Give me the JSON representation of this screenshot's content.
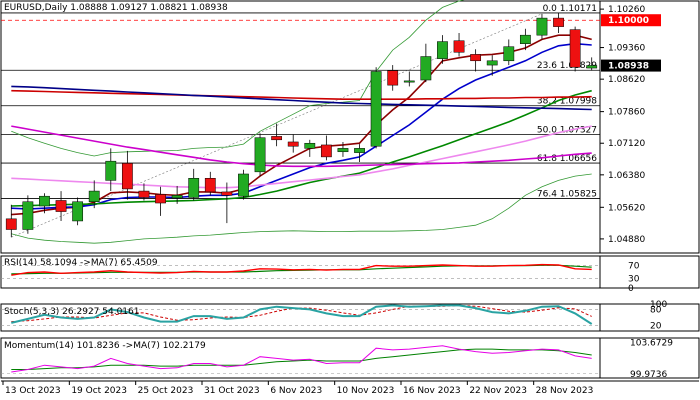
{
  "chart_data": {
    "type": "candlestick",
    "symbol": "EURUSD",
    "timeframe": "Daily",
    "ohlc_header": "EURUSD,Daily  1.08888 1.09127 1.08821 1.08938",
    "price_axis": {
      "ylim": [
        1.0455,
        1.1045
      ],
      "ticks": [
        "1.10260",
        "1.09360",
        "1.08620",
        "1.07860",
        "1.07120",
        "1.06380",
        "1.05620",
        "1.04880"
      ],
      "tick_values": [
        1.1026,
        1.0936,
        1.0862,
        1.0786,
        1.0712,
        1.0638,
        1.0562,
        1.0488
      ]
    },
    "x_axis": {
      "labels": [
        "13 Oct 2023",
        "19 Oct 2023",
        "25 Oct 2023",
        "31 Oct 2023",
        "6 Nov 2023",
        "10 Nov 2023",
        "16 Nov 2023",
        "22 Nov 2023",
        "28 Nov 2023"
      ],
      "label_bar_index": [
        0,
        4,
        8,
        12,
        16,
        20,
        24,
        28,
        32
      ]
    },
    "candles": [
      {
        "o": 1.0535,
        "h": 1.0568,
        "l": 1.0492,
        "c": 1.051
      },
      {
        "o": 1.051,
        "h": 1.059,
        "l": 1.05,
        "c": 1.0575
      },
      {
        "o": 1.0565,
        "h": 1.0595,
        "l": 1.0548,
        "c": 1.0588
      },
      {
        "o": 1.0578,
        "h": 1.06,
        "l": 1.053,
        "c": 1.0552
      },
      {
        "o": 1.053,
        "h": 1.0585,
        "l": 1.052,
        "c": 1.0575
      },
      {
        "o": 1.0575,
        "h": 1.0625,
        "l": 1.056,
        "c": 1.06
      },
      {
        "o": 1.0625,
        "h": 1.07,
        "l": 1.06,
        "c": 1.067
      },
      {
        "o": 1.0665,
        "h": 1.0694,
        "l": 1.058,
        "c": 1.0605
      },
      {
        "o": 1.06,
        "h": 1.0618,
        "l": 1.0578,
        "c": 1.0585
      },
      {
        "o": 1.0592,
        "h": 1.061,
        "l": 1.0542,
        "c": 1.0572
      },
      {
        "o": 1.0584,
        "h": 1.0612,
        "l": 1.057,
        "c": 1.059
      },
      {
        "o": 1.0585,
        "h": 1.0652,
        "l": 1.0578,
        "c": 1.063
      },
      {
        "o": 1.063,
        "h": 1.0645,
        "l": 1.059,
        "c": 1.0598
      },
      {
        "o": 1.0598,
        "h": 1.062,
        "l": 1.0525,
        "c": 1.059
      },
      {
        "o": 1.0588,
        "h": 1.065,
        "l": 1.058,
        "c": 1.064
      },
      {
        "o": 1.0645,
        "h": 1.0735,
        "l": 1.0635,
        "c": 1.0725
      },
      {
        "o": 1.0728,
        "h": 1.0758,
        "l": 1.0705,
        "c": 1.072
      },
      {
        "o": 1.0715,
        "h": 1.0732,
        "l": 1.069,
        "c": 1.0705
      },
      {
        "o": 1.07,
        "h": 1.072,
        "l": 1.068,
        "c": 1.0712
      },
      {
        "o": 1.0708,
        "h": 1.073,
        "l": 1.0672,
        "c": 1.068
      },
      {
        "o": 1.0692,
        "h": 1.0715,
        "l": 1.068,
        "c": 1.07
      },
      {
        "o": 1.069,
        "h": 1.071,
        "l": 1.0668,
        "c": 1.07
      },
      {
        "o": 1.0705,
        "h": 1.089,
        "l": 1.07,
        "c": 1.088
      },
      {
        "o": 1.0882,
        "h": 1.0895,
        "l": 1.0835,
        "c": 1.0848
      },
      {
        "o": 1.0855,
        "h": 1.088,
        "l": 1.0845,
        "c": 1.0858
      },
      {
        "o": 1.086,
        "h": 1.0945,
        "l": 1.0855,
        "c": 1.0915
      },
      {
        "o": 1.091,
        "h": 1.0965,
        "l": 1.0898,
        "c": 1.095
      },
      {
        "o": 1.0952,
        "h": 1.097,
        "l": 1.0915,
        "c": 1.0925
      },
      {
        "o": 1.092,
        "h": 1.0932,
        "l": 1.088,
        "c": 1.0905
      },
      {
        "o": 1.0895,
        "h": 1.0918,
        "l": 1.087,
        "c": 1.0905
      },
      {
        "o": 1.0905,
        "h": 1.0955,
        "l": 1.0895,
        "c": 1.0938
      },
      {
        "o": 1.0945,
        "h": 1.098,
        "l": 1.093,
        "c": 1.0965
      },
      {
        "o": 1.0965,
        "h": 1.1015,
        "l": 1.0955,
        "c": 1.1005
      },
      {
        "o": 1.1005,
        "h": 1.1018,
        "l": 1.097,
        "c": 1.0985
      },
      {
        "o": 1.0978,
        "h": 1.0985,
        "l": 1.088,
        "c": 1.089
      },
      {
        "o": 1.0888,
        "h": 1.0913,
        "l": 1.0882,
        "c": 1.0894
      }
    ],
    "candle_colors": {
      "up": "#22aa22",
      "down": "#ee1111"
    },
    "moving_averages": [
      {
        "color": "#8b0000",
        "values": [
          1.0545,
          1.0548,
          1.0555,
          1.056,
          1.0562,
          1.0574,
          1.0596,
          1.0598,
          1.0596,
          1.0592,
          1.059,
          1.0598,
          1.0598,
          1.0595,
          1.0605,
          1.0635,
          1.066,
          1.068,
          1.07,
          1.0705,
          1.0708,
          1.0712,
          1.0755,
          1.079,
          1.082,
          1.086,
          1.0905,
          1.0912,
          1.0918,
          1.092,
          1.0925,
          1.0935,
          1.0955,
          1.0965,
          1.0965,
          1.0955
        ]
      },
      {
        "color": "#0000cc",
        "values": [
          1.056,
          1.0558,
          1.056,
          1.0562,
          1.0563,
          1.0568,
          1.058,
          1.0585,
          1.0586,
          1.0586,
          1.0585,
          1.0588,
          1.059,
          1.059,
          1.0595,
          1.061,
          1.0625,
          1.064,
          1.0655,
          1.0665,
          1.0672,
          1.068,
          1.0705,
          1.073,
          1.0755,
          1.0785,
          1.0815,
          1.084,
          1.086,
          1.0875,
          1.089,
          1.0905,
          1.0925,
          1.094,
          1.0945,
          1.0942
        ]
      },
      {
        "color": "#008800",
        "values": [
          1.0565,
          1.0566,
          1.0567,
          1.0568,
          1.0569,
          1.057,
          1.0572,
          1.0574,
          1.0575,
          1.0576,
          1.0577,
          1.0578,
          1.058,
          1.0582,
          1.0585,
          1.0592,
          1.06,
          1.061,
          1.062,
          1.0628,
          1.0635,
          1.0642,
          1.0655,
          1.0668,
          1.068,
          1.0693,
          1.0706,
          1.072,
          1.0734,
          1.0748,
          1.0762,
          1.0778,
          1.0795,
          1.0812,
          1.0825,
          1.0835
        ]
      },
      {
        "color": "#ee88ee",
        "values": [
          1.063,
          1.0628,
          1.0626,
          1.0624,
          1.0622,
          1.062,
          1.0618,
          1.0616,
          1.0614,
          1.0612,
          1.061,
          1.0609,
          1.0608,
          1.0608,
          1.061,
          1.0614,
          1.0618,
          1.0622,
          1.0626,
          1.063,
          1.0634,
          1.0638,
          1.0645,
          1.0652,
          1.066,
          1.0668,
          1.0676,
          1.0684,
          1.0692,
          1.07,
          1.0708,
          1.0717,
          1.0727,
          1.0737,
          1.0745,
          1.0752
        ]
      },
      {
        "color": "#cc00cc",
        "values": [
          1.0752,
          1.0745,
          1.0738,
          1.0731,
          1.0724,
          1.0717,
          1.071,
          1.0703,
          1.0697,
          1.0691,
          1.0685,
          1.0679,
          1.0673,
          1.0668,
          1.0664,
          1.0661,
          1.0659,
          1.0658,
          1.0658,
          1.0658,
          1.0659,
          1.066,
          1.0661,
          1.0662,
          1.0663,
          1.0664,
          1.0665,
          1.0666,
          1.0668,
          1.067,
          1.0672,
          1.0675,
          1.0678,
          1.0682,
          1.0686,
          1.0689
        ]
      },
      {
        "color": "#cc0000",
        "values": [
          1.0835,
          1.0834,
          1.0833,
          1.0832,
          1.0831,
          1.083,
          1.0829,
          1.0828,
          1.0827,
          1.0826,
          1.0825,
          1.0824,
          1.0823,
          1.0822,
          1.0821,
          1.082,
          1.0819,
          1.0818,
          1.0817,
          1.0816,
          1.0815,
          1.0815,
          1.0815,
          1.0815,
          1.0815,
          1.0816,
          1.0816,
          1.0817,
          1.0817,
          1.0818,
          1.0818,
          1.0819,
          1.0819,
          1.082,
          1.082,
          1.0821
        ]
      },
      {
        "color": "#000088",
        "values": [
          1.0845,
          1.0844,
          1.0842,
          1.084,
          1.0838,
          1.0836,
          1.0834,
          1.0832,
          1.083,
          1.0828,
          1.0826,
          1.0824,
          1.0822,
          1.082,
          1.0818,
          1.0816,
          1.0814,
          1.0812,
          1.081,
          1.0808,
          1.0806,
          1.0805,
          1.0804,
          1.0803,
          1.0802,
          1.0801,
          1.08,
          1.0799,
          1.0798,
          1.0797,
          1.0796,
          1.0795,
          1.0794,
          1.0793,
          1.0792,
          1.0791
        ]
      }
    ],
    "bollinger_bands": {
      "color": "#339933",
      "upper": [
        1.074,
        1.0725,
        1.0712,
        1.07,
        1.069,
        1.0682,
        1.069,
        1.0692,
        1.0693,
        1.0694,
        1.0695,
        1.07,
        1.0702,
        1.0703,
        1.071,
        1.074,
        1.076,
        1.078,
        1.08,
        1.0805,
        1.0808,
        1.0812,
        1.088,
        1.093,
        1.096,
        1.1,
        1.103,
        1.1045,
        1.1055,
        1.106,
        1.1065,
        1.1068,
        1.107,
        1.107,
        1.107,
        1.107
      ],
      "lower": [
        1.05,
        1.049,
        1.0485,
        1.0482,
        1.048,
        1.0478,
        1.048,
        1.0484,
        1.0488,
        1.049,
        1.0492,
        1.0495,
        1.0497,
        1.05,
        1.0503,
        1.0505,
        1.0506,
        1.0507,
        1.0506,
        1.0505,
        1.0505,
        1.0506,
        1.0506,
        1.0506,
        1.0507,
        1.0508,
        1.051,
        1.0515,
        1.052,
        1.0535,
        1.056,
        1.059,
        1.061,
        1.0625,
        1.0635,
        1.064
      ]
    },
    "fibonacci": [
      {
        "label": "0.0 1.10171",
        "value": 1.10171
      },
      {
        "label": "23.6 1.08829",
        "value": 1.08829
      },
      {
        "label": "38.2 1.07998",
        "value": 1.07998
      },
      {
        "label": "50.0 1.07327",
        "value": 1.07327
      },
      {
        "label": "61.8 1.06656",
        "value": 1.06656
      },
      {
        "label": "76.4 1.05825",
        "value": 1.05825
      }
    ],
    "red_level": {
      "label": "1.10000",
      "value": 1.1,
      "color": "#ff0000"
    },
    "current_price": {
      "label": "1.08938",
      "value": 1.08938
    },
    "rsi": {
      "title": "RSI(14) 58.1094  ->MA(7) 65.4509",
      "ticks": [
        "70",
        "30",
        "0"
      ],
      "tick_values": [
        70,
        30,
        0
      ],
      "ylim": [
        0,
        100
      ],
      "rsi_values": [
        40,
        48,
        50,
        46,
        48,
        50,
        54,
        50,
        48,
        47,
        48,
        52,
        50,
        50,
        53,
        60,
        59,
        57,
        58,
        56,
        58,
        58,
        70,
        68,
        68,
        70,
        72,
        70,
        68,
        68,
        70,
        71,
        73,
        72,
        60,
        58
      ],
      "ma_values": [
        44,
        45,
        46,
        46,
        47,
        48,
        49,
        49,
        49,
        49,
        49,
        50,
        50,
        50,
        50,
        52,
        54,
        55,
        56,
        57,
        57,
        57,
        60,
        62,
        64,
        66,
        68,
        69,
        69,
        69,
        70,
        70,
        71,
        71,
        68,
        65
      ],
      "rsi_color": "#ff0000",
      "ma_color": "#008000"
    },
    "stochastic": {
      "title": "Stoch(5,3,3) 26.2927 54.0161",
      "ticks": [
        "100",
        "80",
        "20"
      ],
      "tick_values": [
        100,
        80,
        20
      ],
      "ylim": [
        0,
        100
      ],
      "k_values": [
        30,
        45,
        60,
        50,
        45,
        50,
        80,
        70,
        50,
        35,
        35,
        55,
        55,
        45,
        50,
        80,
        90,
        85,
        80,
        65,
        55,
        55,
        90,
        95,
        90,
        92,
        95,
        95,
        85,
        70,
        65,
        75,
        90,
        92,
        65,
        26
      ],
      "d_values": [
        35,
        38,
        45,
        52,
        52,
        48,
        58,
        67,
        67,
        52,
        40,
        42,
        48,
        52,
        50,
        58,
        73,
        85,
        85,
        77,
        67,
        58,
        67,
        80,
        92,
        92,
        92,
        94,
        92,
        83,
        73,
        70,
        77,
        86,
        82,
        54
      ],
      "k_color": "#2aa3a3",
      "d_color": "#cc0000"
    },
    "momentum": {
      "title": "Momentum(14) 101.8236  ->MA(7) 102.2179",
      "ticks": [
        "103.6729",
        "99.9736"
      ],
      "tick_values": [
        103.6729,
        99.9736
      ],
      "ylim": [
        99.5,
        104.2
      ],
      "mom_values": [
        100.2,
        100.5,
        101.0,
        100.8,
        100.6,
        100.9,
        101.8,
        101.2,
        100.9,
        100.6,
        100.7,
        101.2,
        101.2,
        100.8,
        101.0,
        102.0,
        101.8,
        101.6,
        101.7,
        101.2,
        101.3,
        101.3,
        103.0,
        102.8,
        102.9,
        103.1,
        103.3,
        102.9,
        102.6,
        102.4,
        102.5,
        102.7,
        102.9,
        102.8,
        102.1,
        101.8
      ],
      "ma_values": [
        100.5,
        100.5,
        100.6,
        100.7,
        100.7,
        100.8,
        101.0,
        101.0,
        101.0,
        100.9,
        100.9,
        101.0,
        101.0,
        101.0,
        101.0,
        101.2,
        101.4,
        101.5,
        101.6,
        101.5,
        101.5,
        101.5,
        101.8,
        102.0,
        102.2,
        102.4,
        102.6,
        102.8,
        102.9,
        102.9,
        102.8,
        102.8,
        102.8,
        102.7,
        102.5,
        102.2
      ],
      "mom_color": "#e600e6",
      "ma_color": "#008000"
    }
  }
}
